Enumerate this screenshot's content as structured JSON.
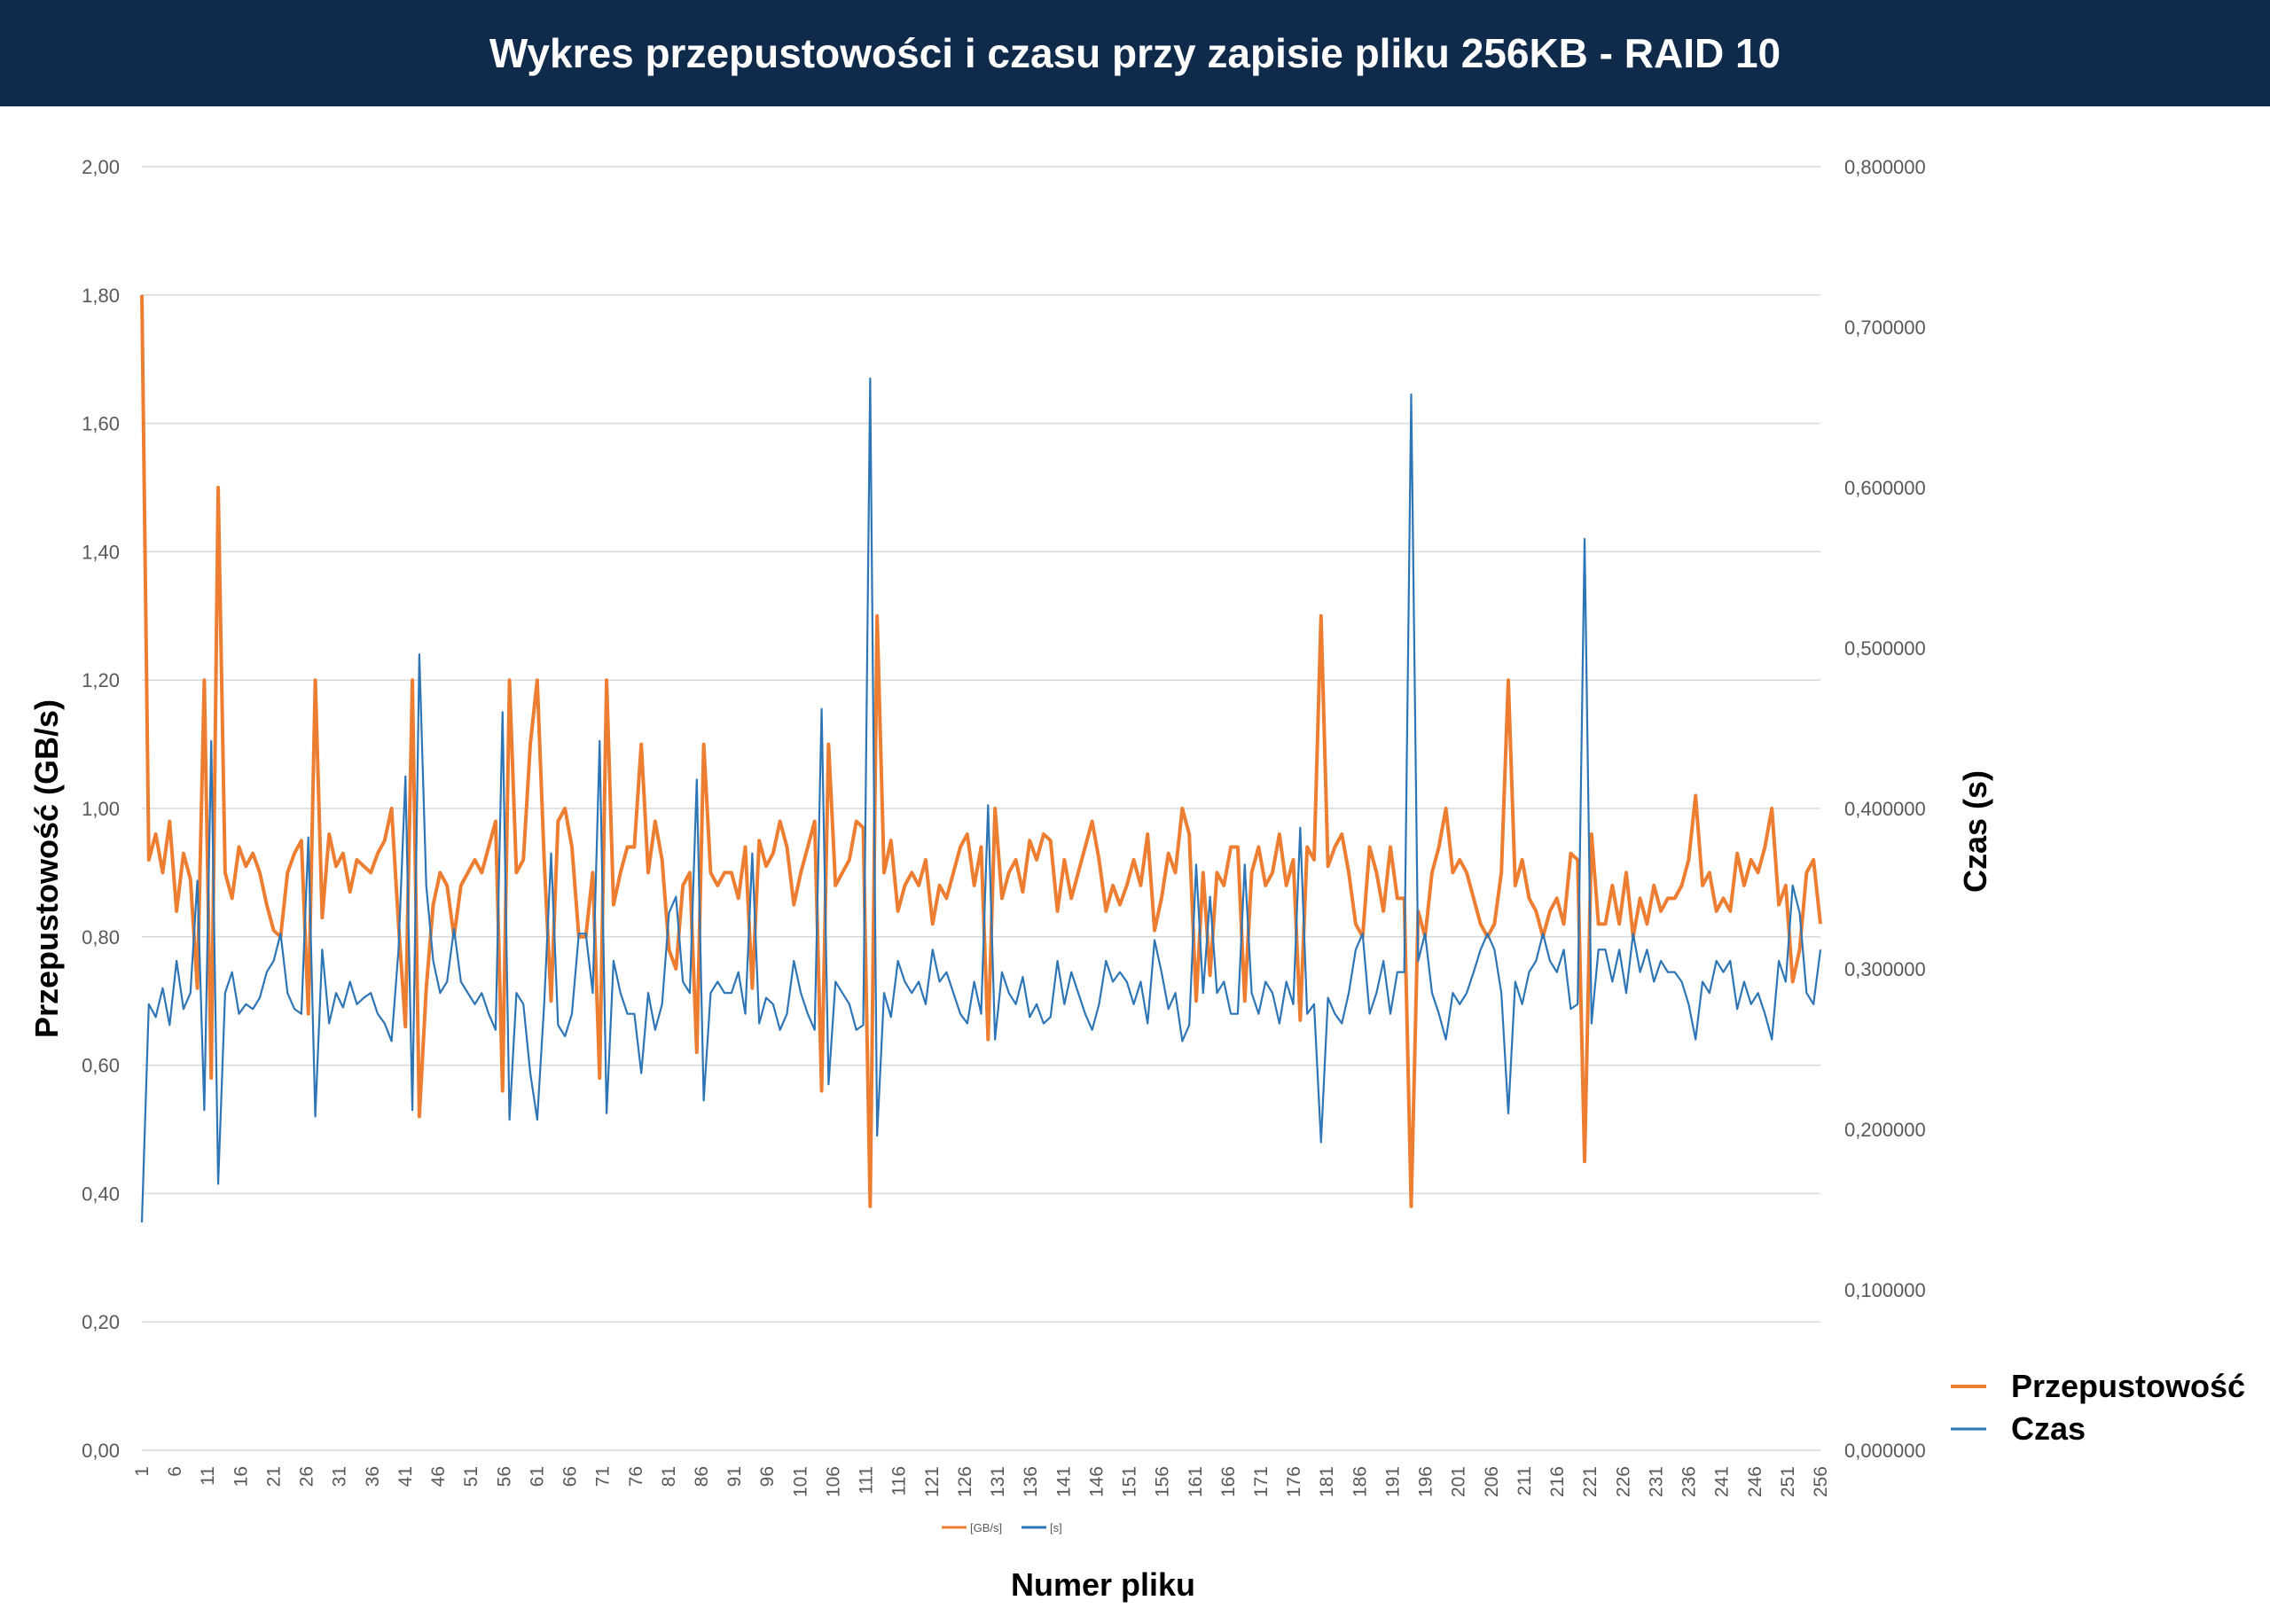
{
  "chart_data": {
    "type": "line",
    "title": "Wykres przepustowości i czasu przy zapisie pliku 256KB - RAID 10",
    "xlabel": "Numer pliku",
    "ylabel_left": "Przepustowość (GB/s)",
    "ylabel_right": "Czas (s)",
    "ylim_left": [
      0,
      2
    ],
    "ylim_right": [
      0,
      0.8
    ],
    "left_ticks": [
      "0,00",
      "0,20",
      "0,40",
      "0,60",
      "0,80",
      "1,00",
      "1,20",
      "1,40",
      "1,60",
      "1,80",
      "2,00"
    ],
    "right_ticks": [
      "0,000000",
      "0,100000",
      "0,200000",
      "0,300000",
      "0,400000",
      "0,500000",
      "0,600000",
      "0,700000",
      "0,800000"
    ],
    "x_tick_labels": [
      "1",
      "6",
      "11",
      "16",
      "21",
      "26",
      "31",
      "36",
      "41",
      "46",
      "51",
      "56",
      "61",
      "66",
      "71",
      "76",
      "81",
      "86",
      "91",
      "96",
      "101",
      "106",
      "111",
      "116",
      "121",
      "126",
      "131",
      "136",
      "141",
      "146",
      "151",
      "156",
      "161",
      "166",
      "171",
      "176",
      "181",
      "186",
      "191",
      "196",
      "201",
      "206",
      "211",
      "216",
      "221",
      "226",
      "231",
      "236",
      "241",
      "246",
      "251",
      "256"
    ],
    "x_range": [
      1,
      256
    ],
    "grid": true,
    "legend_position": "right",
    "series": [
      {
        "name": "Przepustowość",
        "legend_small": "[GB/s]",
        "axis": "left",
        "color": "#ed7d31",
        "values": [
          1.8,
          0.92,
          0.96,
          0.9,
          0.98,
          0.84,
          0.93,
          0.89,
          0.72,
          1.2,
          0.58,
          1.5,
          0.9,
          0.86,
          0.94,
          0.91,
          0.93,
          0.9,
          0.85,
          0.81,
          0.8,
          0.9,
          0.93,
          0.95,
          0.68,
          1.2,
          0.83,
          0.96,
          0.91,
          0.93,
          0.87,
          0.92,
          0.91,
          0.9,
          0.93,
          0.95,
          1.0,
          0.82,
          0.66,
          1.2,
          0.52,
          0.72,
          0.85,
          0.9,
          0.88,
          0.8,
          0.88,
          0.9,
          0.92,
          0.9,
          0.94,
          0.98,
          0.56,
          1.2,
          0.9,
          0.92,
          1.1,
          1.2,
          0.92,
          0.7,
          0.98,
          1.0,
          0.94,
          0.8,
          0.8,
          0.9,
          0.58,
          1.2,
          0.85,
          0.9,
          0.94,
          0.94,
          1.1,
          0.9,
          0.98,
          0.92,
          0.78,
          0.75,
          0.88,
          0.9,
          0.62,
          1.1,
          0.9,
          0.88,
          0.9,
          0.9,
          0.86,
          0.94,
          0.72,
          0.95,
          0.91,
          0.93,
          0.98,
          0.94,
          0.85,
          0.9,
          0.94,
          0.98,
          0.56,
          1.1,
          0.88,
          0.9,
          0.92,
          0.98,
          0.97,
          0.38,
          1.3,
          0.9,
          0.95,
          0.84,
          0.88,
          0.9,
          0.88,
          0.92,
          0.82,
          0.88,
          0.86,
          0.9,
          0.94,
          0.96,
          0.88,
          0.94,
          0.64,
          1.0,
          0.86,
          0.9,
          0.92,
          0.87,
          0.95,
          0.92,
          0.96,
          0.95,
          0.84,
          0.92,
          0.86,
          0.9,
          0.94,
          0.98,
          0.92,
          0.84,
          0.88,
          0.85,
          0.88,
          0.92,
          0.88,
          0.96,
          0.81,
          0.86,
          0.93,
          0.9,
          1.0,
          0.96,
          0.7,
          0.9,
          0.74,
          0.9,
          0.88,
          0.94,
          0.94,
          0.7,
          0.9,
          0.94,
          0.88,
          0.9,
          0.96,
          0.88,
          0.92,
          0.67,
          0.94,
          0.92,
          1.3,
          0.91,
          0.94,
          0.96,
          0.9,
          0.82,
          0.8,
          0.94,
          0.9,
          0.84,
          0.94,
          0.86,
          0.86,
          0.38,
          0.84,
          0.8,
          0.9,
          0.94,
          1.0,
          0.9,
          0.92,
          0.9,
          0.86,
          0.82,
          0.8,
          0.82,
          0.9,
          1.2,
          0.88,
          0.92,
          0.86,
          0.84,
          0.8,
          0.84,
          0.86,
          0.82,
          0.93,
          0.92,
          0.45,
          0.96,
          0.82,
          0.82,
          0.88,
          0.82,
          0.9,
          0.8,
          0.86,
          0.82,
          0.88,
          0.84,
          0.86,
          0.86,
          0.88,
          0.92,
          1.02,
          0.88,
          0.9,
          0.84,
          0.86,
          0.84,
          0.93,
          0.88,
          0.92,
          0.9,
          0.94,
          1.0,
          0.85,
          0.88,
          0.73,
          0.78,
          0.9,
          0.92,
          0.82
        ]
      },
      {
        "name": "Czas",
        "legend_small": "[s]",
        "axis": "right",
        "color": "#2e75b6",
        "values": [
          0.142,
          0.278,
          0.27,
          0.288,
          0.265,
          0.305,
          0.275,
          0.285,
          0.355,
          0.212,
          0.442,
          0.166,
          0.285,
          0.298,
          0.272,
          0.278,
          0.275,
          0.282,
          0.298,
          0.305,
          0.322,
          0.285,
          0.275,
          0.272,
          0.382,
          0.208,
          0.312,
          0.266,
          0.285,
          0.276,
          0.292,
          0.278,
          0.282,
          0.285,
          0.272,
          0.266,
          0.255,
          0.312,
          0.42,
          0.212,
          0.496,
          0.352,
          0.305,
          0.285,
          0.292,
          0.325,
          0.292,
          0.285,
          0.278,
          0.285,
          0.272,
          0.262,
          0.46,
          0.206,
          0.285,
          0.278,
          0.235,
          0.206,
          0.278,
          0.372,
          0.265,
          0.258,
          0.272,
          0.322,
          0.322,
          0.285,
          0.442,
          0.21,
          0.305,
          0.285,
          0.272,
          0.272,
          0.235,
          0.285,
          0.262,
          0.278,
          0.335,
          0.345,
          0.292,
          0.285,
          0.418,
          0.218,
          0.285,
          0.292,
          0.285,
          0.285,
          0.298,
          0.272,
          0.372,
          0.266,
          0.282,
          0.278,
          0.262,
          0.272,
          0.305,
          0.285,
          0.272,
          0.262,
          0.462,
          0.228,
          0.292,
          0.285,
          0.278,
          0.262,
          0.265,
          0.668,
          0.196,
          0.285,
          0.27,
          0.305,
          0.292,
          0.285,
          0.292,
          0.278,
          0.312,
          0.292,
          0.298,
          0.285,
          0.272,
          0.266,
          0.292,
          0.272,
          0.402,
          0.256,
          0.298,
          0.285,
          0.278,
          0.295,
          0.27,
          0.278,
          0.266,
          0.27,
          0.305,
          0.278,
          0.298,
          0.285,
          0.272,
          0.262,
          0.278,
          0.305,
          0.292,
          0.298,
          0.292,
          0.278,
          0.292,
          0.266,
          0.318,
          0.298,
          0.275,
          0.285,
          0.255,
          0.265,
          0.365,
          0.285,
          0.345,
          0.285,
          0.292,
          0.272,
          0.272,
          0.365,
          0.285,
          0.272,
          0.292,
          0.285,
          0.266,
          0.292,
          0.278,
          0.388,
          0.272,
          0.278,
          0.192,
          0.282,
          0.272,
          0.266,
          0.285,
          0.312,
          0.322,
          0.272,
          0.285,
          0.305,
          0.272,
          0.298,
          0.298,
          0.658,
          0.305,
          0.322,
          0.285,
          0.272,
          0.256,
          0.285,
          0.278,
          0.285,
          0.298,
          0.312,
          0.322,
          0.312,
          0.285,
          0.21,
          0.292,
          0.278,
          0.298,
          0.305,
          0.322,
          0.305,
          0.298,
          0.312,
          0.275,
          0.278,
          0.568,
          0.266,
          0.312,
          0.312,
          0.292,
          0.312,
          0.285,
          0.322,
          0.298,
          0.312,
          0.292,
          0.305,
          0.298,
          0.298,
          0.292,
          0.278,
          0.256,
          0.292,
          0.285,
          0.305,
          0.298,
          0.305,
          0.275,
          0.292,
          0.278,
          0.285,
          0.272,
          0.256,
          0.305,
          0.292,
          0.352,
          0.335,
          0.285,
          0.278,
          0.312
        ]
      }
    ]
  }
}
